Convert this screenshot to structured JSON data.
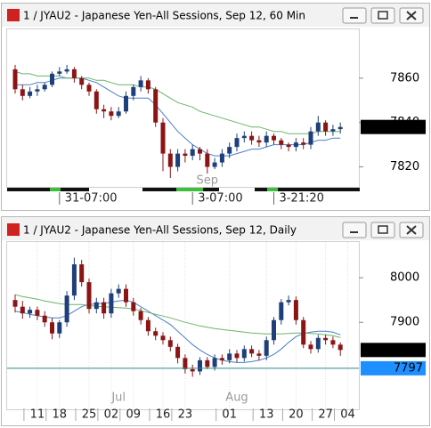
{
  "chart_data": [
    {
      "type": "candlestick",
      "title": "1 / JYAU2 - Japanese Yen-All Sessions, Sep 12, 60 Min",
      "categories": [
        null,
        null,
        null,
        null,
        null,
        null,
        "31-07:00",
        null,
        null,
        null,
        null,
        null,
        null,
        null,
        null,
        null,
        null,
        null,
        null,
        null,
        null,
        null,
        null,
        null,
        "3-07:00",
        null,
        null,
        null,
        null,
        null,
        null,
        null,
        null,
        null,
        null,
        "3-21:20",
        null,
        null,
        null,
        null,
        null,
        null,
        null,
        null,
        null
      ],
      "months": [
        null,
        null,
        null,
        null,
        null,
        null,
        null,
        null,
        null,
        null,
        null,
        null,
        null,
        null,
        null,
        null,
        null,
        null,
        null,
        null,
        null,
        null,
        null,
        null,
        null,
        null,
        "Sep",
        null,
        null,
        null,
        null,
        null,
        null,
        null,
        null,
        null,
        null,
        null,
        null,
        null,
        null,
        null,
        null,
        null,
        null
      ],
      "open": [
        7864,
        7855,
        7852,
        7854,
        7855,
        7857,
        7862,
        7863,
        7864,
        7860,
        7857,
        7854,
        7846,
        7845,
        7843,
        7845,
        7852,
        7856,
        7859,
        7855,
        7840,
        7826,
        7820,
        7826,
        7825,
        7828,
        7826,
        7820,
        7822,
        7826,
        7829,
        7833,
        7834,
        7832,
        7831,
        7834,
        7832,
        7830,
        7829,
        7831,
        7830,
        7836,
        7840,
        7836,
        7837
      ],
      "high": [
        7866,
        7857,
        7856,
        7857,
        7858,
        7863,
        7865,
        7866,
        7865,
        7861,
        7858,
        7855,
        7848,
        7847,
        7847,
        7854,
        7857,
        7861,
        7860,
        7856,
        7842,
        7828,
        7828,
        7828,
        7830,
        7829,
        7828,
        7824,
        7828,
        7831,
        7835,
        7836,
        7836,
        7834,
        7836,
        7835,
        7833,
        7831,
        7833,
        7833,
        7838,
        7843,
        7841,
        7839,
        7840
      ],
      "low": [
        7853,
        7850,
        7851,
        7852,
        7854,
        7856,
        7861,
        7862,
        7858,
        7855,
        7852,
        7844,
        7842,
        7841,
        7842,
        7844,
        7850,
        7854,
        7853,
        7838,
        7818,
        7815,
        7818,
        7822,
        7823,
        7823,
        7817,
        7819,
        7820,
        7824,
        7827,
        7831,
        7830,
        7829,
        7829,
        7830,
        7828,
        7827,
        7827,
        7828,
        7828,
        7834,
        7834,
        7834,
        7835
      ],
      "close": [
        7855,
        7852,
        7854,
        7855,
        7857,
        7862,
        7863,
        7864,
        7860,
        7857,
        7854,
        7846,
        7845,
        7843,
        7845,
        7852,
        7856,
        7859,
        7855,
        7840,
        7826,
        7820,
        7826,
        7825,
        7828,
        7826,
        7820,
        7822,
        7826,
        7829,
        7833,
        7834,
        7832,
        7831,
        7834,
        7832,
        7830,
        7829,
        7831,
        7830,
        7836,
        7840,
        7836,
        7837,
        7838
      ],
      "lines": [
        {
          "color": "#4a7fc8",
          "values": [
            7857,
            7857,
            7857,
            7858,
            7858,
            7859,
            7860,
            7860,
            7860,
            7860,
            7859,
            7858,
            7856,
            7854,
            7852,
            7851,
            7851,
            7851,
            7851,
            7848,
            7844,
            7840,
            7836,
            7833,
            7830,
            7828,
            7826,
            7825,
            7825,
            7825,
            7826,
            7827,
            7828,
            7828,
            7829,
            7830,
            7830,
            7830,
            7830,
            7830,
            7831,
            7832,
            7832,
            7833,
            7833
          ]
        },
        {
          "color": "#6bb36b",
          "values": [
            7863,
            7862,
            7862,
            7861,
            7861,
            7861,
            7861,
            7860,
            7860,
            7860,
            7860,
            7859,
            7859,
            7858,
            7857,
            7857,
            7857,
            7856,
            7856,
            7855,
            7853,
            7851,
            7849,
            7848,
            7847,
            7845,
            7844,
            7843,
            7842,
            7841,
            7840,
            7839,
            7838,
            7838,
            7837,
            7836,
            7836,
            7835,
            7835,
            7835,
            7835,
            7836,
            7836,
            7836,
            7836
          ]
        }
      ],
      "up_color": "#1f3f7a",
      "down_color": "#8b1515",
      "ylim": [
        7811,
        7882
      ],
      "yticks": [
        7820,
        7840,
        7860
      ],
      "grid": false,
      "price_markers": [
        {
          "value": 7838,
          "color": "#000000",
          "line": false
        }
      ]
    },
    {
      "type": "candlestick",
      "title": "1 / JYAU2 - Japanese Yen-All Sessions, Sep 12, Daily",
      "categories": [
        null,
        null,
        null,
        "11",
        null,
        null,
        "18",
        null,
        null,
        null,
        "25",
        null,
        null,
        "02",
        null,
        null,
        "09",
        null,
        null,
        null,
        "16",
        null,
        null,
        "23",
        null,
        null,
        null,
        null,
        null,
        "01",
        null,
        null,
        null,
        null,
        "13",
        null,
        null,
        null,
        "20",
        null,
        null,
        null,
        "27",
        null,
        null,
        "04"
      ],
      "months": [
        null,
        null,
        null,
        null,
        null,
        null,
        null,
        null,
        null,
        null,
        null,
        null,
        null,
        null,
        "Jul",
        null,
        null,
        null,
        null,
        null,
        null,
        null,
        null,
        null,
        null,
        null,
        null,
        null,
        null,
        null,
        "Aug",
        null,
        null,
        null,
        null,
        null,
        null,
        null,
        null,
        null,
        null,
        null,
        null,
        null,
        null,
        null
      ],
      "open": [
        7950,
        7935,
        7920,
        7928,
        7915,
        7900,
        7875,
        7900,
        7960,
        8030,
        7990,
        7930,
        7945,
        7920,
        7965,
        7975,
        7945,
        7925,
        7905,
        7880,
        7870,
        7860,
        7845,
        7820,
        7795,
        7790,
        7815,
        7800,
        7820,
        7815,
        7830,
        7820,
        7840,
        7830,
        7825,
        7860,
        7905,
        7945,
        7950,
        7905,
        7850,
        7840,
        7865,
        7860,
        7850,
        null
      ],
      "high": [
        7962,
        7948,
        7935,
        7935,
        7925,
        7910,
        7905,
        7970,
        8045,
        8040,
        7998,
        7955,
        7955,
        7975,
        7985,
        7985,
        7955,
        7932,
        7912,
        7888,
        7878,
        7868,
        7852,
        7828,
        7805,
        7822,
        7822,
        7828,
        7828,
        7840,
        7838,
        7848,
        7848,
        7838,
        7868,
        7912,
        7952,
        7960,
        7958,
        7912,
        7858,
        7872,
        7872,
        7868,
        7855,
        null
      ],
      "low": [
        7922,
        7908,
        7910,
        7905,
        7890,
        7862,
        7865,
        7890,
        7950,
        7980,
        7920,
        7920,
        7908,
        7910,
        7955,
        7935,
        7915,
        7895,
        7870,
        7860,
        7850,
        7835,
        7808,
        7785,
        7778,
        7782,
        7795,
        7792,
        7805,
        7808,
        7810,
        7812,
        7822,
        7815,
        7815,
        7850,
        7895,
        7938,
        7895,
        7842,
        7830,
        7832,
        7850,
        7842,
        7825,
        null
      ],
      "close": [
        7935,
        7920,
        7928,
        7915,
        7900,
        7875,
        7900,
        7960,
        8030,
        7990,
        7930,
        7945,
        7920,
        7965,
        7975,
        7945,
        7925,
        7905,
        7880,
        7870,
        7860,
        7845,
        7820,
        7795,
        7790,
        7815,
        7800,
        7820,
        7815,
        7830,
        7820,
        7840,
        7830,
        7825,
        7860,
        7905,
        7945,
        7950,
        7905,
        7850,
        7840,
        7865,
        7860,
        7850,
        7838,
        null
      ],
      "lines": [
        {
          "color": "#4a7fc8",
          "values": [
            7925,
            7922,
            7918,
            7915,
            7912,
            7910,
            7910,
            7915,
            7925,
            7935,
            7940,
            7942,
            7943,
            7945,
            7948,
            7950,
            7945,
            7935,
            7925,
            7915,
            7905,
            7895,
            7880,
            7865,
            7850,
            7838,
            7828,
            7820,
            7815,
            7812,
            7810,
            7810,
            7812,
            7815,
            7820,
            7828,
            7840,
            7855,
            7868,
            7875,
            7878,
            7880,
            7880,
            7878,
            7872,
            null
          ]
        },
        {
          "color": "#6bb36b",
          "values": [
            7962,
            7958,
            7955,
            7952,
            7948,
            7945,
            7942,
            7940,
            7940,
            7940,
            7938,
            7936,
            7935,
            7934,
            7933,
            7932,
            7930,
            7926,
            7922,
            7918,
            7914,
            7910,
            7905,
            7900,
            7896,
            7892,
            7889,
            7886,
            7884,
            7882,
            7880,
            7878,
            7876,
            7875,
            7874,
            7874,
            7874,
            7875,
            7876,
            7876,
            7875,
            7874,
            7872,
            7870,
            7866,
            null
          ]
        }
      ],
      "up_color": "#1f3f7a",
      "down_color": "#8b1515",
      "ylim": [
        7705,
        8080
      ],
      "yticks": [
        7900,
        8000
      ],
      "grid": true,
      "price_markers": [
        {
          "value": 7838,
          "color": "#000000",
          "line": false
        },
        {
          "value": 7797,
          "color": "#1e8fff",
          "line": true
        }
      ]
    }
  ]
}
